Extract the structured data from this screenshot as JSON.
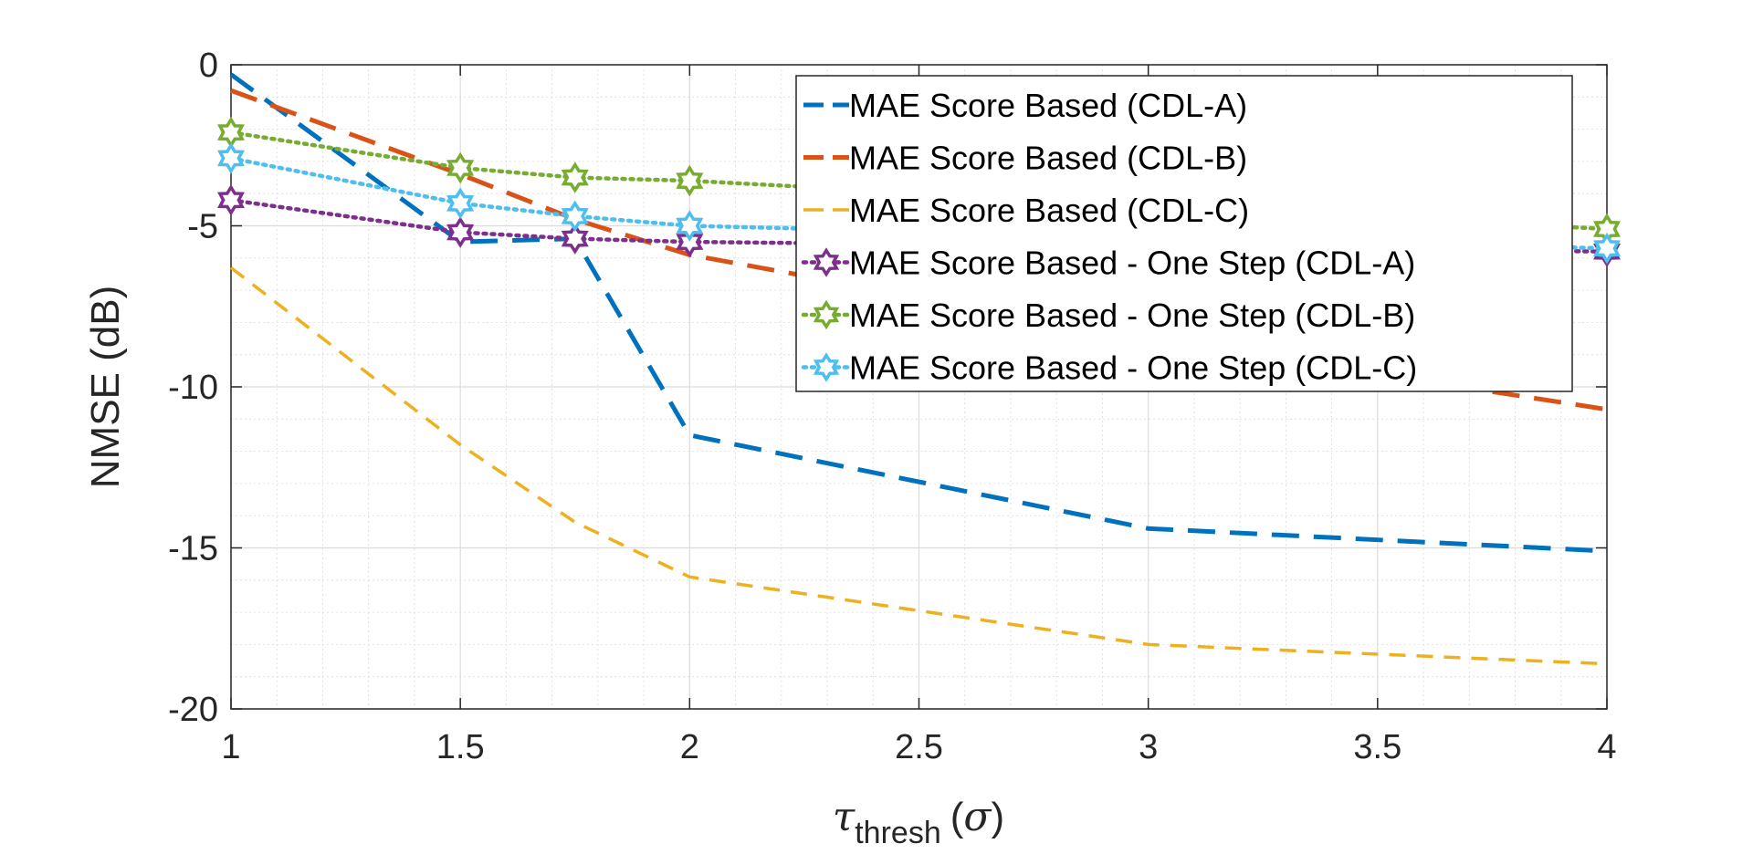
{
  "chart_data": {
    "type": "line",
    "title": "",
    "xlabel": {
      "symbol": "τ",
      "subscript": "thresh",
      "unit_open": "(",
      "unit_symbol": "σ",
      "unit_close": ")"
    },
    "ylabel": "NMSE (dB)",
    "xlim": [
      1,
      4
    ],
    "ylim": [
      -20,
      0
    ],
    "xticks": [
      1,
      1.5,
      2,
      2.5,
      3,
      3.5,
      4
    ],
    "xtick_labels": [
      "1",
      "1.5",
      "2",
      "2.5",
      "3",
      "3.5",
      "4"
    ],
    "yticks": [
      0,
      -5,
      -10,
      -15,
      -20
    ],
    "ytick_labels": [
      "0",
      "-5",
      "-10",
      "-15",
      "-20"
    ],
    "grid": "on (major and minor)",
    "legend_position": "top-right",
    "series": [
      {
        "name": "MAE Score Based (CDL-A)",
        "color": "#0072BD",
        "style": "dashed-long",
        "marker": "none",
        "x": [
          1,
          1.5,
          1.75,
          2,
          3,
          4
        ],
        "y": [
          -0.3,
          -5.5,
          -5.4,
          -11.5,
          -14.4,
          -15.1
        ]
      },
      {
        "name": "MAE Score Based (CDL-B)",
        "color": "#D95319",
        "style": "dashed-long",
        "marker": "none",
        "x": [
          1,
          1.5,
          1.75,
          2,
          3,
          4
        ],
        "y": [
          -0.8,
          -3.4,
          -4.8,
          -5.9,
          -8.5,
          -10.7
        ]
      },
      {
        "name": "MAE Score Based (CDL-C)",
        "color": "#EDB120",
        "style": "dashed",
        "marker": "none",
        "x": [
          1,
          1.5,
          1.75,
          2,
          3,
          4
        ],
        "y": [
          -6.3,
          -11.8,
          -14.2,
          -15.9,
          -18.0,
          -18.6
        ]
      },
      {
        "name": "MAE Score Based - One Step (CDL-A)",
        "color": "#7E2F8E",
        "style": "dotted",
        "marker": "hexagram",
        "x": [
          1,
          1.5,
          1.75,
          2,
          4
        ],
        "y": [
          -4.2,
          -5.2,
          -5.4,
          -5.5,
          -5.8
        ]
      },
      {
        "name": "MAE Score Based - One Step (CDL-B)",
        "color": "#77AC30",
        "style": "dotted",
        "marker": "hexagram",
        "x": [
          1,
          1.5,
          1.75,
          2,
          4
        ],
        "y": [
          -2.1,
          -3.2,
          -3.5,
          -3.6,
          -5.1
        ]
      },
      {
        "name": "MAE Score Based - One Step (CDL-C)",
        "color": "#4DBEEE",
        "style": "dotted",
        "marker": "hexagram",
        "x": [
          1,
          1.5,
          1.75,
          2,
          4
        ],
        "y": [
          -2.9,
          -4.3,
          -4.7,
          -5.0,
          -5.7
        ]
      }
    ]
  }
}
